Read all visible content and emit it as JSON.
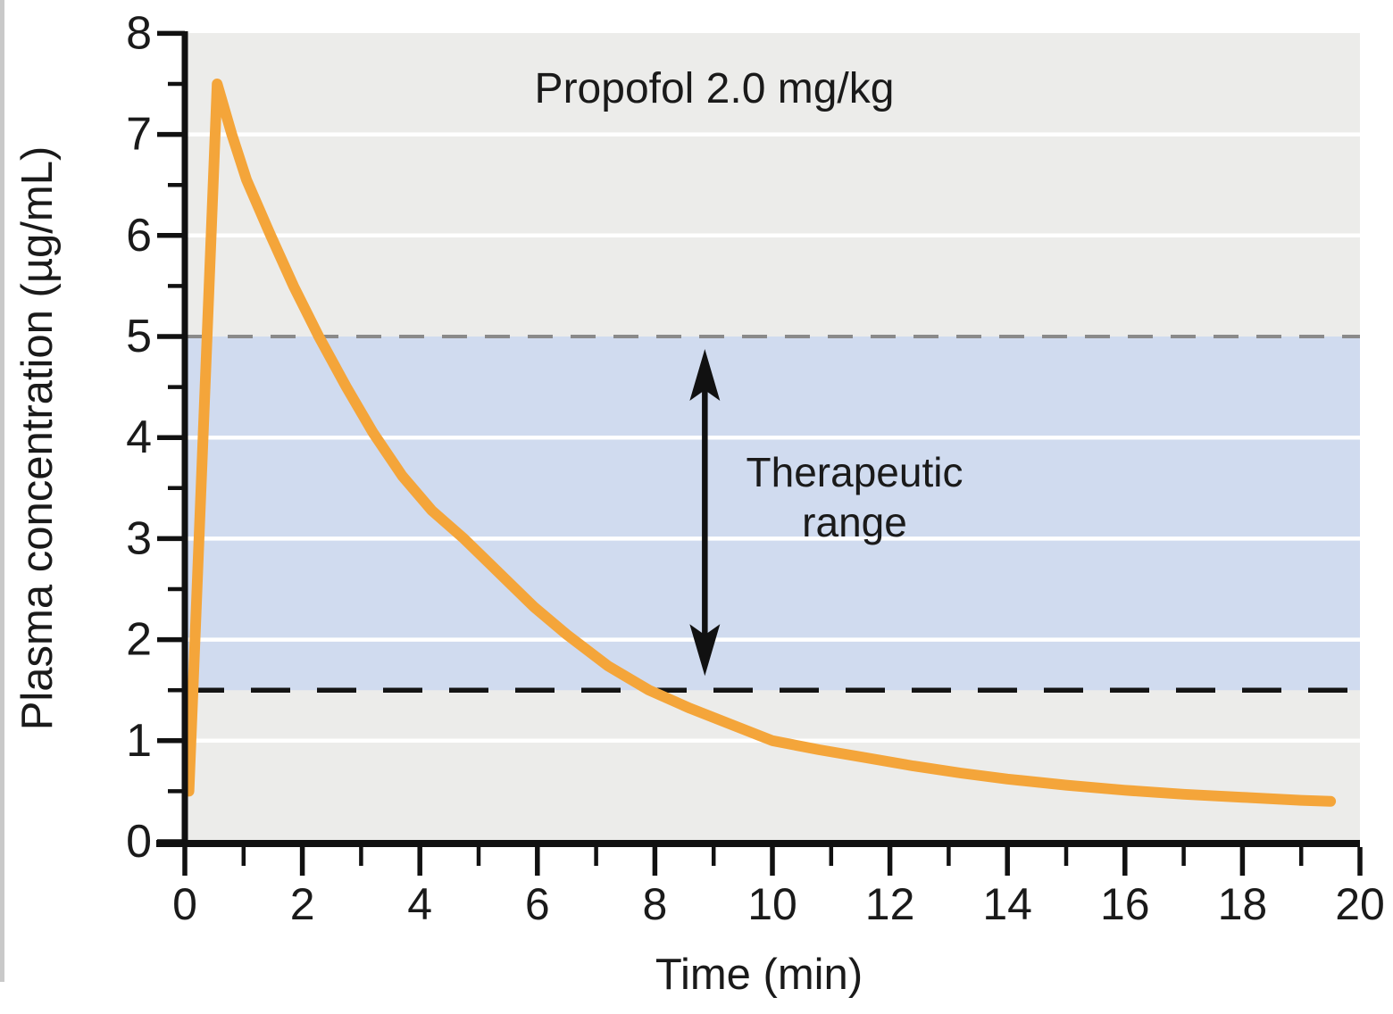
{
  "chart_data": {
    "type": "line",
    "title": "Propofol 2.0 mg/kg",
    "xlabel": "Time (min)",
    "ylabel": "Plasma concentration (µg/mL)",
    "xlim": [
      0,
      20
    ],
    "ylim": [
      0,
      8
    ],
    "x_major_ticks": [
      0,
      2,
      4,
      6,
      8,
      10,
      12,
      14,
      16,
      18,
      20
    ],
    "x_minor_ticks": [
      1,
      3,
      5,
      7,
      9,
      11,
      13,
      15,
      17,
      19
    ],
    "y_major_ticks": [
      0,
      1,
      2,
      3,
      4,
      5,
      6,
      7,
      8
    ],
    "y_minor_ticks": [
      0.5,
      1.5,
      2.5,
      3.5,
      4.5,
      5.5,
      6.5,
      7.5
    ],
    "grid": "horizontal-white",
    "white_gridlines_y": [
      1,
      2,
      3,
      4,
      6,
      7
    ],
    "legend_position": "none",
    "therapeutic_band": {
      "low": 1.5,
      "high": 5.0,
      "label": "Therapeutic range",
      "upper_boundary_style": "gray-dashed",
      "lower_boundary_style": "black-dashed"
    },
    "series": [
      {
        "name": "Propofol 2.0 mg/kg plasma concentration",
        "points": [
          [
            0.07,
            0.5
          ],
          [
            0.55,
            7.5
          ],
          [
            0.8,
            7.0
          ],
          [
            1.05,
            6.55
          ],
          [
            1.46,
            6.0
          ],
          [
            1.85,
            5.5
          ],
          [
            2.28,
            5.0
          ],
          [
            2.75,
            4.5
          ],
          [
            3.2,
            4.05
          ],
          [
            3.7,
            3.62
          ],
          [
            4.2,
            3.28
          ],
          [
            4.75,
            3.0
          ],
          [
            5.35,
            2.66
          ],
          [
            5.95,
            2.32
          ],
          [
            6.5,
            2.05
          ],
          [
            7.2,
            1.74
          ],
          [
            7.9,
            1.5
          ],
          [
            8.6,
            1.32
          ],
          [
            9.3,
            1.16
          ],
          [
            10.0,
            1.0
          ],
          [
            10.8,
            0.91
          ],
          [
            11.6,
            0.83
          ],
          [
            12.4,
            0.75
          ],
          [
            13.2,
            0.68
          ],
          [
            14.0,
            0.62
          ],
          [
            15.0,
            0.56
          ],
          [
            16.0,
            0.51
          ],
          [
            17.0,
            0.47
          ],
          [
            18.0,
            0.44
          ],
          [
            19.0,
            0.41
          ],
          [
            19.5,
            0.4
          ]
        ]
      }
    ]
  },
  "annotation": {
    "line1": "Therapeutic",
    "line2": "range"
  },
  "colors": {
    "curve": "#F4A53A",
    "plot_bg": "#ECECEA",
    "band": "#D0DBEF",
    "grid": "#FFFFFF",
    "axis": "#111111",
    "upper_dash": "#8A8A8A",
    "lower_dash": "#141414",
    "text": "#1A1A1A",
    "arrow": "#111111"
  }
}
